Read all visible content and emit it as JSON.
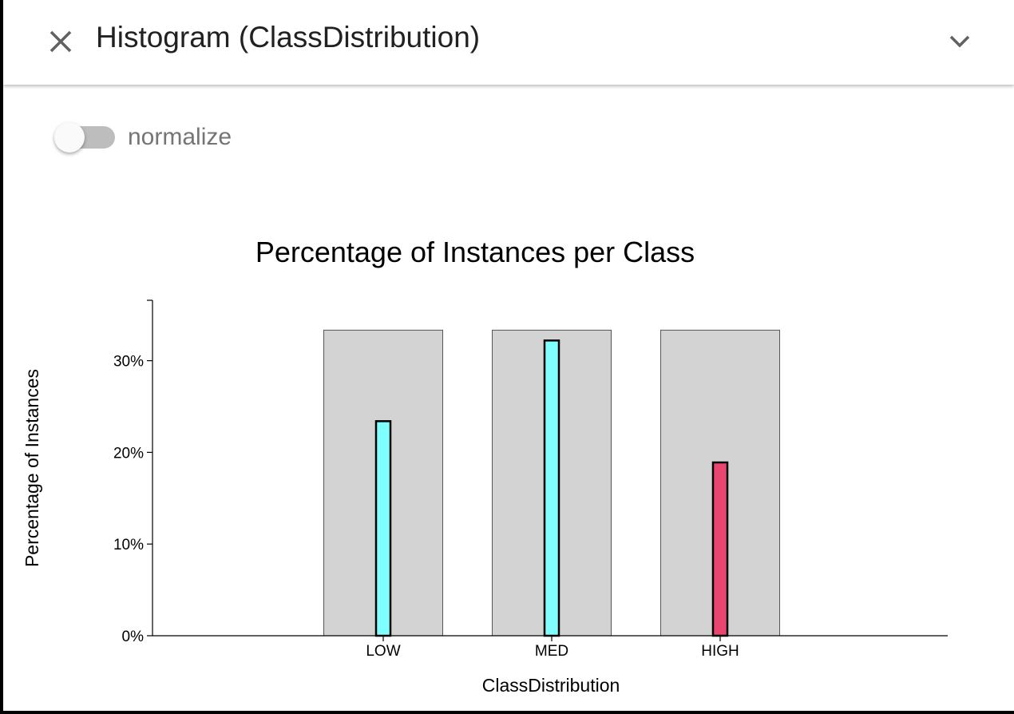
{
  "header": {
    "title": "Histogram (ClassDistribution)",
    "close_icon": "close-icon",
    "expand_icon": "chevron-down-icon"
  },
  "controls": {
    "normalize_label": "normalize",
    "normalize_on": false
  },
  "colors": {
    "background_bar": "#d3d3d3",
    "low_med_bar": "#7fffff",
    "high_bar": "#e8466e"
  },
  "chart_data": {
    "type": "bar",
    "title": "Percentage of Instances per Class",
    "xlabel": "ClassDistribution",
    "ylabel": "Percentage of Instances",
    "categories": [
      "LOW",
      "MED",
      "HIGH"
    ],
    "ylim": [
      0,
      0.37
    ],
    "yticks": [
      0,
      0.1,
      0.2,
      0.3
    ],
    "ytick_labels": [
      "0%",
      "10%",
      "20%",
      "30%"
    ],
    "series": [
      {
        "values": [
          0.3333,
          0.3333,
          0.3333
        ],
        "color": "#d3d3d3"
      },
      {
        "values": [
          0.234,
          0.322,
          0.189
        ],
        "colors": [
          "#7fffff",
          "#7fffff",
          "#e8466e"
        ]
      }
    ],
    "grid": false,
    "legend": "none"
  }
}
